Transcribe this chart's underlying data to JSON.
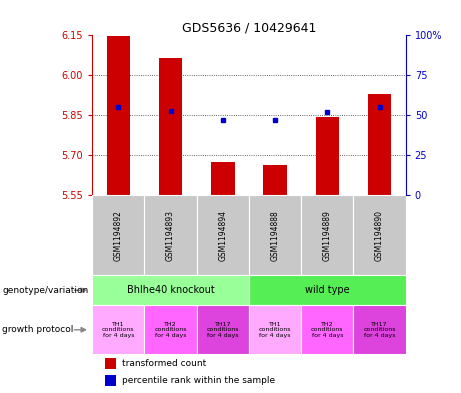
{
  "title": "GDS5636 / 10429641",
  "samples": [
    "GSM1194892",
    "GSM1194893",
    "GSM1194894",
    "GSM1194888",
    "GSM1194889",
    "GSM1194890"
  ],
  "transformed_counts": [
    6.148,
    6.065,
    5.675,
    5.665,
    5.845,
    5.93
  ],
  "percentile_ranks": [
    55,
    53,
    47,
    47,
    52,
    55
  ],
  "ylim_left": [
    5.55,
    6.15
  ],
  "ylim_right": [
    0,
    100
  ],
  "yticks_left": [
    5.55,
    5.7,
    5.85,
    6.0,
    6.15
  ],
  "yticks_right": [
    0,
    25,
    50,
    75,
    100
  ],
  "ytick_labels_right": [
    "0",
    "25",
    "50",
    "75",
    "100%"
  ],
  "bar_color": "#cc0000",
  "dot_color": "#0000cc",
  "bar_bottom": 5.55,
  "genotype_groups": [
    {
      "label": "Bhlhe40 knockout",
      "start": 0,
      "end": 3,
      "color": "#99ff99"
    },
    {
      "label": "wild type",
      "start": 3,
      "end": 6,
      "color": "#55ee55"
    }
  ],
  "growth_protocols": [
    {
      "label": "TH1\nconditions\nfor 4 days",
      "color": "#ffaaff"
    },
    {
      "label": "TH2\nconditions\nfor 4 days",
      "color": "#ff66ff"
    },
    {
      "label": "TH17\nconditions\nfor 4 days",
      "color": "#dd44dd"
    },
    {
      "label": "TH1\nconditions\nfor 4 days",
      "color": "#ffaaff"
    },
    {
      "label": "TH2\nconditions\nfor 4 days",
      "color": "#ff66ff"
    },
    {
      "label": "TH17\nconditions\nfor 4 days",
      "color": "#dd44dd"
    }
  ],
  "left_label_color": "#cc0000",
  "right_label_color": "#0000cc",
  "sample_bg_color": "#c8c8c8",
  "grid_color": "#333333",
  "bg_color": "#ffffff"
}
